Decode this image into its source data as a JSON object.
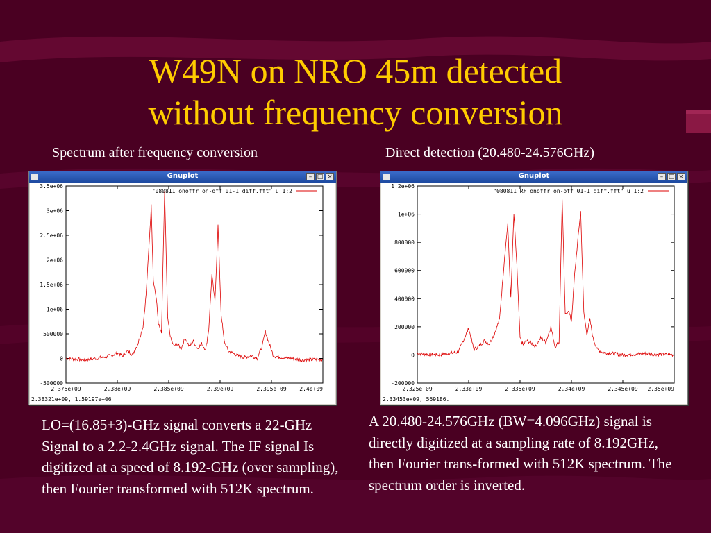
{
  "slide": {
    "title_line1": "W49N on NRO 45m detected",
    "title_line2": "without frequency conversion",
    "left_caption": "Spectrum after frequency conversion",
    "right_caption": "Direct detection (20.480-24.576GHz)",
    "left_desc": "LO=(16.85+3)-GHz signal converts a 22-GHz Signal to a 2.2-2.4GHz signal.  The IF signal Is digitized at a speed of 8.192-GHz (over sampling), then Fourier transformed with 512K spectrum.",
    "right_desc": "A 20.480-24.576GHz (BW=4.096GHz) signal  is directly digitized at a sampling rate of 8.192GHz, then Fourier trans-formed with 512K spectrum. The spectrum order is inverted.",
    "colors": {
      "background": "#4a0022",
      "title": "#ffcc00",
      "text": "#ffffff",
      "trace": "#dd0000"
    }
  },
  "windows": [
    {
      "title": "Gnuplot",
      "legend": "\"080811_onoffr_on-off_01-1_diff.fft\" u 1:2",
      "status": "2.38321e+09,  1.59197e+06",
      "min_icon": "minimize-icon",
      "max_icon": "maximize-icon",
      "close_icon": "close-icon",
      "chart_data": {
        "type": "line",
        "xlim": [
          2375000000.0,
          2400000000.0
        ],
        "ylim": [
          -500000,
          3500000
        ],
        "xticks": [
          "2.375e+09",
          "2.38e+09",
          "2.385e+09",
          "2.39e+09",
          "2.395e+09",
          "2.4e+09"
        ],
        "yticks": [
          "3.5e+06",
          "3e+06",
          "2.5e+06",
          "2e+06",
          "1.5e+06",
          "1e+06",
          "500000",
          "0",
          "-500000"
        ],
        "series": [
          {
            "name": "\"080811_onoffr_on-off_01-1_diff.fft\" u 1:2",
            "x": [
              2375000000.0,
              2377000000.0,
              2378500000.0,
              2379500000.0,
              2380000000.0,
              2380500000.0,
              2381000000.0,
              2381500000.0,
              2382000000.0,
              2382500000.0,
              2382800000.0,
              2383000000.0,
              2383300000.0,
              2383500000.0,
              2383800000.0,
              2384000000.0,
              2384300000.0,
              2384600000.0,
              2384900000.0,
              2385200000.0,
              2385500000.0,
              2385800000.0,
              2386200000.0,
              2386600000.0,
              2387000000.0,
              2387400000.0,
              2387800000.0,
              2388200000.0,
              2388600000.0,
              2388900000.0,
              2389200000.0,
              2389500000.0,
              2389800000.0,
              2390100000.0,
              2390400000.0,
              2390800000.0,
              2391300000.0,
              2391800000.0,
              2392400000.0,
              2393000000.0,
              2393600000.0,
              2394100000.0,
              2394400000.0,
              2394700000.0,
              2395200000.0,
              2396000000.0,
              2397000000.0,
              2398000000.0,
              2400000000.0
            ],
            "y": [
              0,
              -30000,
              20000,
              60000,
              120000,
              50000,
              150000,
              80000,
              300000,
              650000,
              1300000,
              2000000,
              3100000,
              1600000,
              1200000,
              700000,
              500000,
              3400000,
              800000,
              400000,
              250000,
              300000,
              200000,
              420000,
              240000,
              350000,
              200000,
              300000,
              180000,
              600000,
              1700000,
              1150000,
              2700000,
              900000,
              350000,
              150000,
              100000,
              50000,
              20000,
              60000,
              0,
              250000,
              550000,
              350000,
              50000,
              20000,
              0,
              -30000,
              -20000
            ]
          }
        ]
      }
    },
    {
      "title": "Gnuplot",
      "legend": "\"080811_RF_onoffr_on-off_01-1_diff.fft\" u 1:2",
      "status": "2.33453e+09,  569186.",
      "min_icon": "minimize-icon",
      "max_icon": "maximize-icon",
      "close_icon": "close-icon",
      "chart_data": {
        "type": "line",
        "xlim": [
          2325000000.0,
          2350000000.0
        ],
        "ylim": [
          -200000,
          1200000
        ],
        "xticks": [
          "2.325e+09",
          "2.33e+09",
          "2.335e+09",
          "2.34e+09",
          "2.345e+09",
          "2.35e+09"
        ],
        "yticks": [
          "1.2e+06",
          "1e+06",
          "800000",
          "600000",
          "400000",
          "200000",
          "0",
          "-200000"
        ],
        "series": [
          {
            "name": "\"080811_RF_onoffr_on-off_01-1_diff.fft\" u 1:2",
            "x": [
              2325000000.0,
              2327000000.0,
              2329000000.0,
              2330000000.0,
              2330500000.0,
              2331000000.0,
              2331500000.0,
              2332000000.0,
              2332500000.0,
              2333000000.0,
              2333500000.0,
              2333800000.0,
              2334100000.0,
              2334400000.0,
              2334700000.0,
              2335000000.0,
              2335300000.0,
              2335600000.0,
              2336000000.0,
              2336500000.0,
              2337000000.0,
              2337500000.0,
              2338000000.0,
              2338400000.0,
              2338800000.0,
              2339100000.0,
              2339400000.0,
              2339700000.0,
              2340000000.0,
              2340300000.0,
              2340600000.0,
              2340900000.0,
              2341200000.0,
              2341500000.0,
              2341800000.0,
              2342100000.0,
              2342500000.0,
              2343000000.0,
              2344000000.0,
              2345000000.0,
              2347000000.0,
              2350000000.0
            ],
            "y": [
              10000,
              0,
              20000,
              190000,
              40000,
              60000,
              100000,
              80000,
              150000,
              250000,
              700000,
              930000,
              400000,
              1000000,
              620000,
              120000,
              70000,
              100000,
              90000,
              60000,
              120000,
              90000,
              200000,
              60000,
              90000,
              1110000,
              280000,
              320000,
              240000,
              560000,
              800000,
              1020000,
              300000,
              150000,
              250000,
              120000,
              40000,
              20000,
              10000,
              0,
              10000,
              0
            ]
          }
        ]
      }
    }
  ]
}
